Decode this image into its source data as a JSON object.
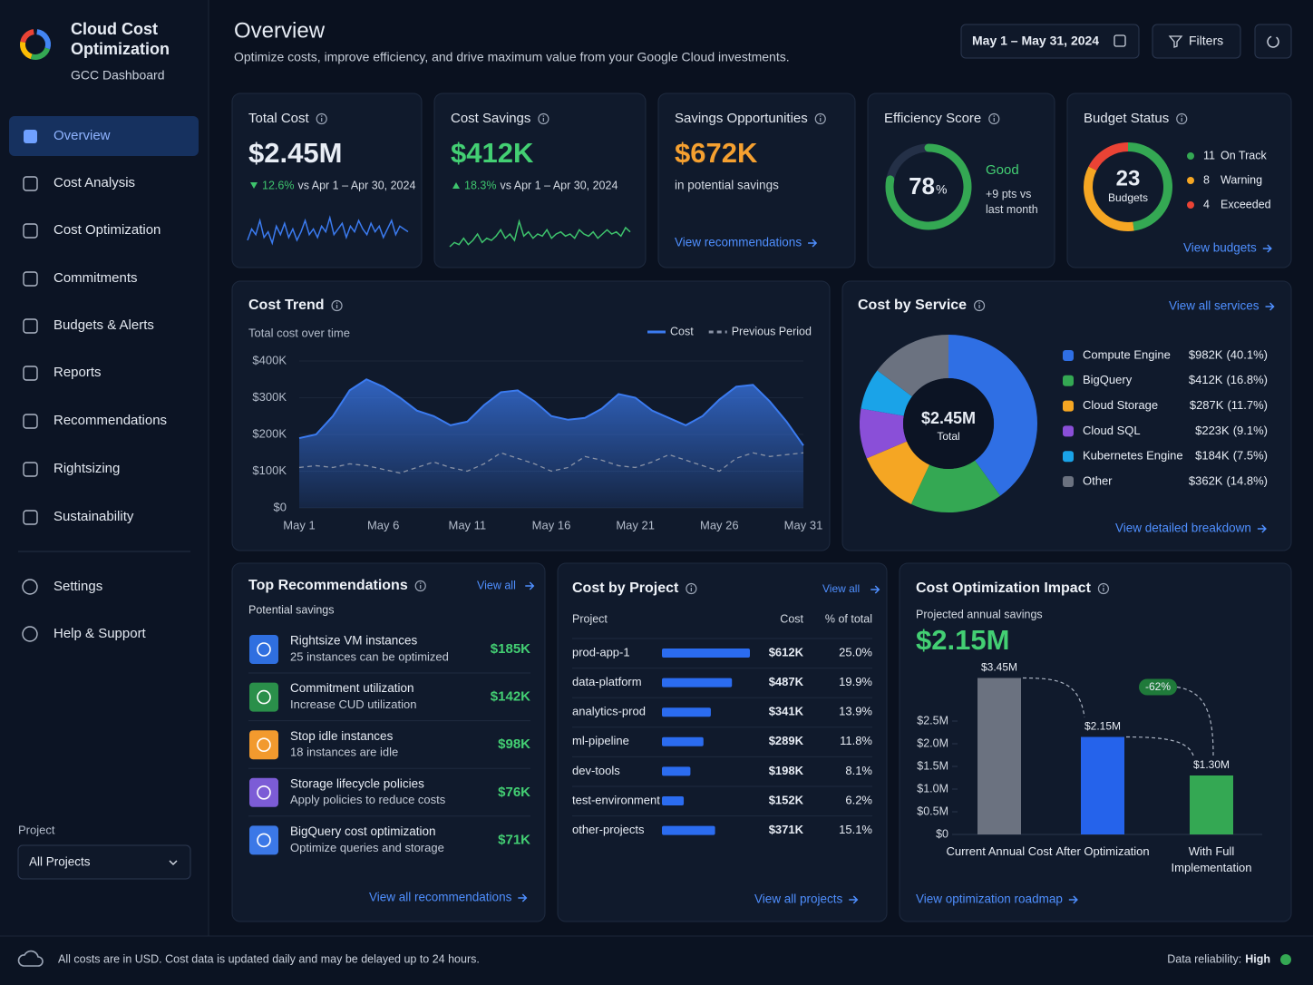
{
  "sidebar": {
    "brand_title": "Cloud Cost Optimization",
    "brand_subtitle": "GCC Dashboard",
    "nav": [
      "Overview",
      "Cost Analysis",
      "Cost Optimization",
      "Commitments",
      "Budgets & Alerts",
      "Reports",
      "Recommendations",
      "Rightsizing",
      "Sustainability"
    ],
    "nav_secondary": [
      "Settings",
      "Help & Support"
    ],
    "project_label": "Project",
    "project_value": "All Projects"
  },
  "header": {
    "title": "Overview",
    "subtitle": "Optimize costs, improve efficiency, and drive maximum value from your Google Cloud investments.",
    "date_range": "May 1 – May 31, 2024",
    "filters": "Filters"
  },
  "total_cost": {
    "label": "Total Cost",
    "value": "$2.45M",
    "change": "12.6%",
    "comparison": "vs Apr 1 – Apr 30, 2024",
    "color": "#3b7bf0",
    "sparkline": [
      8,
      12,
      10,
      15,
      9,
      11,
      7,
      13,
      10,
      14,
      9,
      12,
      8,
      11,
      15,
      10,
      12,
      9,
      13,
      11,
      16,
      10,
      12,
      14,
      9,
      13,
      11,
      15,
      12,
      10,
      14,
      11,
      13,
      9,
      12,
      15,
      10,
      13,
      12,
      11
    ]
  },
  "cost_savings": {
    "label": "Cost Savings",
    "value": "$412K",
    "change": "18.3%",
    "comparison": "vs Apr 1 – Apr 30, 2024",
    "color": "#3ec46d",
    "sparkline": [
      6,
      8,
      7,
      10,
      7,
      9,
      12,
      8,
      10,
      9,
      11,
      14,
      10,
      12,
      9,
      18,
      11,
      13,
      10,
      12,
      11,
      14,
      10,
      12,
      13,
      11,
      12,
      10,
      14,
      12,
      11,
      13,
      10,
      12,
      14,
      12,
      13,
      11,
      15,
      13
    ]
  },
  "savings_opportunities": {
    "label": "Savings Opportunities",
    "value": "$672K",
    "caption": "in potential savings",
    "link": "View recommendations"
  },
  "efficiency_score": {
    "label": "Efficiency Score",
    "value": 78,
    "unit": "%",
    "range": [
      0,
      100
    ],
    "color": "#34a853",
    "rating": "Good",
    "note": "+9 pts vs last month"
  },
  "budget_status": {
    "label": "Budget Status",
    "total": 23,
    "total_label": "Budgets",
    "categories": [
      "On Track",
      "Warning",
      "Exceeded"
    ],
    "values": [
      11,
      8,
      4
    ],
    "colors": [
      "#34a853",
      "#f5a623",
      "#ea4335"
    ],
    "link": "View budgets"
  },
  "cost_trend": {
    "type": "area",
    "title": "Cost Trend",
    "subtitle": "Total cost over time",
    "categories": [
      "May 1",
      null,
      null,
      null,
      null,
      "May 6",
      null,
      null,
      null,
      null,
      "May 11",
      null,
      null,
      null,
      null,
      "May 16",
      null,
      null,
      null,
      null,
      "May 21",
      null,
      null,
      null,
      null,
      "May 26",
      null,
      null,
      null,
      null,
      "May 31"
    ],
    "series": [
      {
        "name": "Cost",
        "color": "#3b7bf0",
        "line_style": "solid",
        "values": [
          190000,
          200000,
          250000,
          320000,
          350000,
          330000,
          300000,
          265000,
          250000,
          225000,
          235000,
          280000,
          315000,
          320000,
          290000,
          250000,
          240000,
          245000,
          270000,
          310000,
          300000,
          265000,
          245000,
          225000,
          250000,
          295000,
          330000,
          335000,
          290000,
          235000,
          170000
        ]
      },
      {
        "name": "Previous Period",
        "color": "#8a93a6",
        "line_style": "dashed",
        "values": [
          110000,
          115000,
          110000,
          120000,
          115000,
          105000,
          95000,
          110000,
          125000,
          110000,
          100000,
          120000,
          150000,
          135000,
          120000,
          100000,
          110000,
          140000,
          130000,
          115000,
          110000,
          125000,
          145000,
          130000,
          115000,
          100000,
          135000,
          150000,
          140000,
          145000,
          150000
        ]
      }
    ],
    "ylim": [
      0,
      400000
    ],
    "yticks": [
      {
        "value": 0,
        "label": "$0"
      },
      {
        "value": 100000,
        "label": "$100K"
      },
      {
        "value": 200000,
        "label": "$200K"
      },
      {
        "value": 300000,
        "label": "$300K"
      },
      {
        "value": 400000,
        "label": "$400K"
      }
    ],
    "grid": true
  },
  "cost_by_service": {
    "type": "donut",
    "title": "Cost by Service",
    "link_top": "View all services",
    "center_value": "$2.45M",
    "center_label": "Total",
    "categories": [
      "Compute Engine",
      "BigQuery",
      "Cloud Storage",
      "Cloud SQL",
      "Kubernetes Engine",
      "Other"
    ],
    "colors": [
      "#2f6fe4",
      "#34a853",
      "#f5a623",
      "#8a4fd8",
      "#1aa3e8",
      "#6b7280"
    ],
    "amounts": [
      982000,
      412000,
      287000,
      223000,
      184000,
      362000
    ],
    "amount_labels": [
      "$982K",
      "$412K",
      "$287K",
      "$223K",
      "$184K",
      "$362K"
    ],
    "values": [
      40.1,
      16.8,
      11.7,
      9.1,
      7.5,
      14.8
    ],
    "value_labels": [
      "(40.1%)",
      "(16.8%)",
      "(11.7%)",
      "(9.1%)",
      "(7.5%)",
      "(14.8%)"
    ],
    "link": "View detailed breakdown"
  },
  "top_recommendations": {
    "title": "Top Recommendations",
    "view_all": "View all",
    "subtitle": "Potential savings",
    "items": [
      {
        "title": "Rightsize VM instances",
        "description": "25 instances can be optimized",
        "savings": "$185K"
      },
      {
        "title": "Commitment utilization",
        "description": "Increase CUD utilization",
        "savings": "$142K"
      },
      {
        "title": "Stop idle instances",
        "description": "18 instances are idle",
        "savings": "$98K"
      },
      {
        "title": "Storage lifecycle policies",
        "description": "Apply policies to reduce costs",
        "savings": "$76K"
      },
      {
        "title": "BigQuery cost optimization",
        "description": "Optimize queries and storage",
        "savings": "$71K"
      }
    ],
    "link": "View all recommendations"
  },
  "cost_by_project": {
    "title": "Cost by Project",
    "view_all": "View all",
    "columns": [
      "Project",
      "Cost",
      "% of total"
    ],
    "projects": [
      "prod-app-1",
      "data-platform",
      "analytics-prod",
      "ml-pipeline",
      "dev-tools",
      "test-environment",
      "other-projects"
    ],
    "costs": [
      612000,
      487000,
      341000,
      289000,
      198000,
      152000,
      371000
    ],
    "cost_labels": [
      "$612K",
      "$487K",
      "$341K",
      "$289K",
      "$198K",
      "$152K",
      "$371K"
    ],
    "shares": [
      25.0,
      19.9,
      13.9,
      11.8,
      8.1,
      6.2,
      15.1
    ],
    "share_labels": [
      "25.0%",
      "19.9%",
      "13.9%",
      "11.8%",
      "8.1%",
      "6.2%",
      "15.1%"
    ],
    "color": "#2b6cf0",
    "link": "View all projects"
  },
  "optimization_impact": {
    "type": "bar",
    "title": "Cost Optimization Impact",
    "subtitle": "Projected annual savings",
    "value": "$2.15M",
    "categories": [
      "Current Annual Cost",
      "After Optimization",
      "With Full Implementation"
    ],
    "values": [
      3450000,
      2150000,
      1300000
    ],
    "value_labels": [
      "$3.45M",
      "$2.15M",
      "$1.30M"
    ],
    "colors": [
      "#6b7280",
      "#2563eb",
      "#34a853"
    ],
    "ylim": [
      0,
      3500000
    ],
    "yticks": [
      {
        "value": 0,
        "label": "$0"
      },
      {
        "value": 500000,
        "label": "$0.5M"
      },
      {
        "value": 1000000,
        "label": "$1.0M"
      },
      {
        "value": 1500000,
        "label": "$1.5M"
      },
      {
        "value": 2000000,
        "label": "$2.0M"
      },
      {
        "value": 2500000,
        "label": "$2.5M"
      }
    ],
    "annotation": "-62%",
    "link": "View optimization roadmap"
  },
  "footer": {
    "note": "All costs are in USD. Cost data is updated daily and may be delayed up to 24 hours.",
    "reliability_label": "Data reliability:",
    "reliability_value": "High"
  }
}
